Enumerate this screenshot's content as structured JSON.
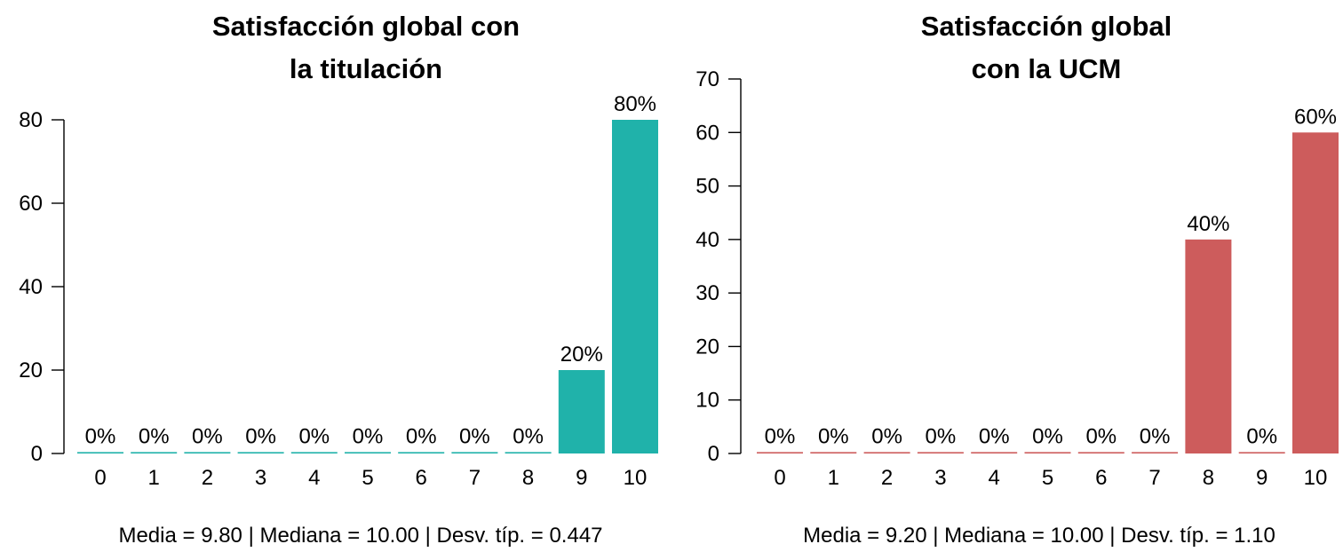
{
  "chart_data": [
    {
      "type": "bar",
      "title_lines": [
        "Satisfacción global con",
        "la titulación"
      ],
      "categories": [
        "0",
        "1",
        "2",
        "3",
        "4",
        "5",
        "6",
        "7",
        "8",
        "9",
        "10"
      ],
      "values": [
        0,
        0,
        0,
        0,
        0,
        0,
        0,
        0,
        0,
        20,
        80
      ],
      "data_labels": [
        "0%",
        "0%",
        "0%",
        "0%",
        "0%",
        "0%",
        "0%",
        "0%",
        "0%",
        "20%",
        "80%"
      ],
      "yticks": [
        0,
        20,
        40,
        60,
        80
      ],
      "ylim": [
        0,
        80
      ],
      "color": "#20b2aa",
      "grid": false,
      "stats_text": "Media =  9.80  | Mediana =  10.00  | Desv. típ. =  0.447"
    },
    {
      "type": "bar",
      "title_lines": [
        "Satisfacción global",
        "con la UCM"
      ],
      "categories": [
        "0",
        "1",
        "2",
        "3",
        "4",
        "5",
        "6",
        "7",
        "8",
        "9",
        "10"
      ],
      "values": [
        0,
        0,
        0,
        0,
        0,
        0,
        0,
        0,
        40,
        0,
        60
      ],
      "data_labels": [
        "0%",
        "0%",
        "0%",
        "0%",
        "0%",
        "0%",
        "0%",
        "0%",
        "40%",
        "0%",
        "60%"
      ],
      "yticks": [
        0,
        10,
        20,
        30,
        40,
        50,
        60,
        70
      ],
      "ylim": [
        0,
        70
      ],
      "color": "#cd5c5c",
      "grid": false,
      "stats_text": "Media =  9.20  | Mediana =  10.00  | Desv. típ. =  1.10"
    }
  ]
}
